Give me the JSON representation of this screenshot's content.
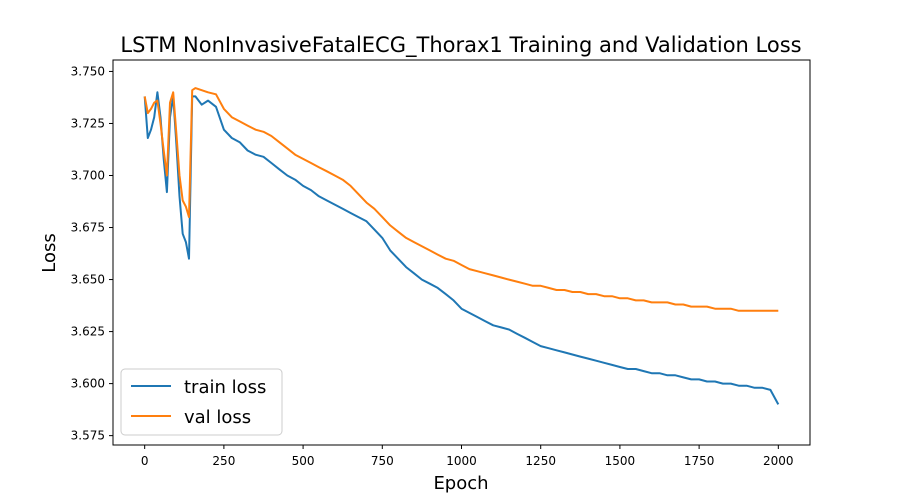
{
  "chart_data": {
    "type": "line",
    "title": "LSTM NonInvasiveFatalECG_Thorax1 Training and Validation Loss",
    "xlabel": "Epoch",
    "ylabel": "Loss",
    "xlim": [
      -100,
      2100
    ],
    "ylim": [
      3.5705,
      3.7555
    ],
    "xticks": [
      0,
      250,
      500,
      750,
      1000,
      1250,
      1500,
      1750,
      2000
    ],
    "xtick_labels": [
      "0",
      "250",
      "500",
      "750",
      "1000",
      "1250",
      "1500",
      "1750",
      "2000"
    ],
    "yticks": [
      3.575,
      3.6,
      3.625,
      3.65,
      3.675,
      3.7,
      3.725,
      3.75
    ],
    "ytick_labels": [
      "3.575",
      "3.600",
      "3.625",
      "3.650",
      "3.675",
      "3.700",
      "3.725",
      "3.750"
    ],
    "grid": false,
    "legend_position": "lower-left",
    "series": [
      {
        "name": "train loss",
        "color": "#1f77b4",
        "x": [
          0,
          10,
          20,
          30,
          40,
          50,
          60,
          70,
          80,
          90,
          100,
          110,
          120,
          130,
          140,
          150,
          160,
          180,
          200,
          225,
          250,
          275,
          300,
          325,
          350,
          375,
          400,
          425,
          450,
          475,
          500,
          525,
          550,
          575,
          600,
          625,
          650,
          675,
          700,
          725,
          750,
          775,
          800,
          825,
          850,
          875,
          900,
          925,
          950,
          975,
          1000,
          1025,
          1050,
          1075,
          1100,
          1125,
          1150,
          1175,
          1200,
          1225,
          1250,
          1275,
          1300,
          1325,
          1350,
          1375,
          1400,
          1425,
          1450,
          1475,
          1500,
          1525,
          1550,
          1575,
          1600,
          1625,
          1650,
          1675,
          1700,
          1725,
          1750,
          1775,
          1800,
          1825,
          1850,
          1875,
          1900,
          1925,
          1950,
          1975,
          2000
        ],
        "y": [
          3.738,
          3.718,
          3.722,
          3.728,
          3.74,
          3.728,
          3.708,
          3.692,
          3.728,
          3.738,
          3.715,
          3.69,
          3.672,
          3.668,
          3.66,
          3.738,
          3.738,
          3.734,
          3.736,
          3.733,
          3.722,
          3.718,
          3.716,
          3.712,
          3.71,
          3.709,
          3.706,
          3.703,
          3.7,
          3.698,
          3.695,
          3.693,
          3.69,
          3.688,
          3.686,
          3.684,
          3.682,
          3.68,
          3.678,
          3.674,
          3.67,
          3.664,
          3.66,
          3.656,
          3.653,
          3.65,
          3.648,
          3.646,
          3.643,
          3.64,
          3.636,
          3.634,
          3.632,
          3.63,
          3.628,
          3.627,
          3.626,
          3.624,
          3.622,
          3.62,
          3.618,
          3.617,
          3.616,
          3.615,
          3.614,
          3.613,
          3.612,
          3.611,
          3.61,
          3.609,
          3.608,
          3.607,
          3.607,
          3.606,
          3.605,
          3.605,
          3.604,
          3.604,
          3.603,
          3.602,
          3.602,
          3.601,
          3.601,
          3.6,
          3.6,
          3.599,
          3.599,
          3.598,
          3.598,
          3.597,
          3.59
        ]
      },
      {
        "name": "val loss",
        "color": "#ff7f0e",
        "x": [
          0,
          10,
          20,
          30,
          40,
          50,
          60,
          70,
          80,
          90,
          100,
          110,
          120,
          130,
          140,
          150,
          160,
          180,
          200,
          225,
          250,
          275,
          300,
          325,
          350,
          375,
          400,
          425,
          450,
          475,
          500,
          525,
          550,
          575,
          600,
          625,
          650,
          675,
          700,
          725,
          750,
          775,
          800,
          825,
          850,
          875,
          900,
          925,
          950,
          975,
          1000,
          1025,
          1050,
          1075,
          1100,
          1125,
          1150,
          1175,
          1200,
          1225,
          1250,
          1275,
          1300,
          1325,
          1350,
          1375,
          1400,
          1425,
          1450,
          1475,
          1500,
          1525,
          1550,
          1575,
          1600,
          1625,
          1650,
          1675,
          1700,
          1725,
          1750,
          1775,
          1800,
          1825,
          1850,
          1875,
          1900,
          1925,
          1950,
          1975,
          2000
        ],
        "y": [
          3.738,
          3.73,
          3.732,
          3.735,
          3.736,
          3.725,
          3.712,
          3.7,
          3.735,
          3.74,
          3.72,
          3.7,
          3.688,
          3.685,
          3.68,
          3.741,
          3.742,
          3.741,
          3.74,
          3.739,
          3.732,
          3.728,
          3.726,
          3.724,
          3.722,
          3.721,
          3.719,
          3.716,
          3.713,
          3.71,
          3.708,
          3.706,
          3.704,
          3.702,
          3.7,
          3.698,
          3.695,
          3.691,
          3.687,
          3.684,
          3.68,
          3.676,
          3.673,
          3.67,
          3.668,
          3.666,
          3.664,
          3.662,
          3.66,
          3.659,
          3.657,
          3.655,
          3.654,
          3.653,
          3.652,
          3.651,
          3.65,
          3.649,
          3.648,
          3.647,
          3.647,
          3.646,
          3.645,
          3.645,
          3.644,
          3.644,
          3.643,
          3.643,
          3.642,
          3.642,
          3.641,
          3.641,
          3.64,
          3.64,
          3.639,
          3.639,
          3.639,
          3.638,
          3.638,
          3.637,
          3.637,
          3.637,
          3.636,
          3.636,
          3.636,
          3.635,
          3.635,
          3.635,
          3.635,
          3.635,
          3.635
        ]
      }
    ]
  }
}
